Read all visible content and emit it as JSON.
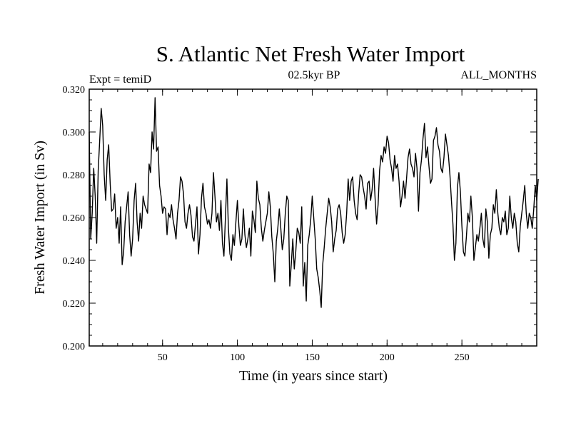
{
  "chart_data": {
    "type": "line",
    "title": "S. Atlantic Net Fresh Water Import",
    "subtitle_left": "Expt = temiD",
    "subtitle_center": "02.5kyr BP",
    "subtitle_right": "ALL_MONTHS",
    "xlabel": "Time (in years since start)",
    "ylabel": "Fresh Water Import (in Sv)",
    "xlim": [
      1,
      300
    ],
    "ylim": [
      0.2,
      0.32
    ],
    "xticks": [
      50,
      100,
      150,
      200,
      250
    ],
    "xtick_labels": [
      "50",
      "100",
      "150",
      "200",
      "250"
    ],
    "yticks": [
      0.2,
      0.22,
      0.24,
      0.26,
      0.28,
      0.3,
      0.32
    ],
    "ytick_labels": [
      "0.200",
      "0.220",
      "0.240",
      "0.260",
      "0.280",
      "0.300",
      "0.320"
    ],
    "x_minor_step": 10,
    "y_minor_step": 0.005,
    "series": [
      {
        "name": "Net Fresh Water Import",
        "x_start": 1,
        "x_step": 1,
        "values": [
          0.3,
          0.25,
          0.262,
          0.283,
          0.27,
          0.248,
          0.282,
          0.296,
          0.311,
          0.303,
          0.28,
          0.268,
          0.287,
          0.294,
          0.276,
          0.263,
          0.264,
          0.271,
          0.255,
          0.26,
          0.248,
          0.265,
          0.238,
          0.244,
          0.258,
          0.265,
          0.272,
          0.252,
          0.242,
          0.25,
          0.268,
          0.276,
          0.258,
          0.249,
          0.262,
          0.255,
          0.27,
          0.266,
          0.264,
          0.262,
          0.285,
          0.281,
          0.3,
          0.292,
          0.316,
          0.291,
          0.293,
          0.275,
          0.27,
          0.262,
          0.265,
          0.264,
          0.252,
          0.262,
          0.26,
          0.266,
          0.259,
          0.255,
          0.25,
          0.262,
          0.268,
          0.279,
          0.277,
          0.271,
          0.258,
          0.255,
          0.262,
          0.266,
          0.261,
          0.251,
          0.249,
          0.257,
          0.265,
          0.243,
          0.252,
          0.269,
          0.276,
          0.265,
          0.262,
          0.257,
          0.259,
          0.255,
          0.262,
          0.281,
          0.27,
          0.258,
          0.262,
          0.254,
          0.268,
          0.248,
          0.242,
          0.26,
          0.278,
          0.255,
          0.243,
          0.24,
          0.252,
          0.247,
          0.258,
          0.268,
          0.256,
          0.247,
          0.25,
          0.264,
          0.252,
          0.246,
          0.25,
          0.255,
          0.242,
          0.263,
          0.259,
          0.253,
          0.277,
          0.269,
          0.266,
          0.255,
          0.249,
          0.254,
          0.258,
          0.262,
          0.272,
          0.265,
          0.251,
          0.243,
          0.23,
          0.249,
          0.255,
          0.264,
          0.255,
          0.245,
          0.25,
          0.262,
          0.27,
          0.268,
          0.228,
          0.238,
          0.25,
          0.236,
          0.244,
          0.255,
          0.253,
          0.248,
          0.265,
          0.228,
          0.239,
          0.221,
          0.247,
          0.252,
          0.259,
          0.27,
          0.26,
          0.25,
          0.236,
          0.232,
          0.226,
          0.218,
          0.238,
          0.246,
          0.255,
          0.262,
          0.269,
          0.265,
          0.258,
          0.244,
          0.25,
          0.254,
          0.264,
          0.266,
          0.262,
          0.253,
          0.248,
          0.252,
          0.262,
          0.278,
          0.268,
          0.277,
          0.279,
          0.268,
          0.262,
          0.259,
          0.271,
          0.28,
          0.279,
          0.274,
          0.27,
          0.264,
          0.276,
          0.277,
          0.268,
          0.273,
          0.283,
          0.269,
          0.257,
          0.266,
          0.282,
          0.289,
          0.286,
          0.293,
          0.29,
          0.298,
          0.295,
          0.287,
          0.283,
          0.277,
          0.289,
          0.283,
          0.285,
          0.277,
          0.265,
          0.27,
          0.277,
          0.269,
          0.278,
          0.288,
          0.292,
          0.285,
          0.283,
          0.279,
          0.29,
          0.283,
          0.263,
          0.281,
          0.287,
          0.297,
          0.304,
          0.288,
          0.293,
          0.284,
          0.276,
          0.278,
          0.296,
          0.298,
          0.302,
          0.294,
          0.291,
          0.283,
          0.281,
          0.288,
          0.299,
          0.294,
          0.289,
          0.28,
          0.268,
          0.257,
          0.24,
          0.248,
          0.274,
          0.281,
          0.272,
          0.256,
          0.244,
          0.242,
          0.251,
          0.262,
          0.258,
          0.27,
          0.26,
          0.24,
          0.246,
          0.252,
          0.249,
          0.255,
          0.262,
          0.25,
          0.246,
          0.264,
          0.258,
          0.241,
          0.252,
          0.255,
          0.266,
          0.262,
          0.273,
          0.262,
          0.255,
          0.252,
          0.26,
          0.258,
          0.263,
          0.252,
          0.255,
          0.27,
          0.26,
          0.255,
          0.262,
          0.258,
          0.248,
          0.244,
          0.256,
          0.262,
          0.268,
          0.275,
          0.262,
          0.255,
          0.262,
          0.26,
          0.255,
          0.264,
          0.275,
          0.268,
          0.278
        ]
      }
    ]
  }
}
